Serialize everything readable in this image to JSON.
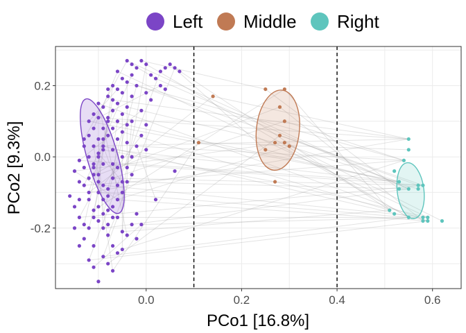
{
  "chart_data": {
    "type": "scatter",
    "title": "",
    "xlabel": "PCo1 [16.8%]",
    "ylabel": "PCo2 [9.3%]",
    "xlim": [
      -0.19,
      0.66
    ],
    "ylim": [
      -0.37,
      0.31
    ],
    "x_ticks": [
      0.0,
      0.2,
      0.4,
      0.6
    ],
    "x_tick_labels": [
      "0.0",
      "0.2",
      "0.4",
      "0.6"
    ],
    "y_ticks": [
      -0.2,
      0.0,
      0.2
    ],
    "y_tick_labels": [
      "-0.2",
      "0.0",
      "0.2"
    ],
    "grid": true,
    "legend_position": "top",
    "vlines": [
      0.1,
      0.4
    ],
    "series": [
      {
        "name": "Left",
        "color": "#7b45c6",
        "ellipse": {
          "cx": -0.092,
          "cy": 0.002,
          "rx": 0.032,
          "ry": 0.167,
          "angle_deg": -16
        },
        "points": [
          [
            -0.12,
            -0.1
          ],
          [
            -0.11,
            -0.05
          ],
          [
            -0.1,
            0.0
          ],
          [
            -0.09,
            0.05
          ],
          [
            -0.08,
            0.1
          ],
          [
            -0.07,
            0.13
          ],
          [
            -0.06,
            0.15
          ],
          [
            -0.05,
            0.18
          ],
          [
            -0.04,
            0.21
          ],
          [
            -0.03,
            0.23
          ],
          [
            -0.02,
            0.25
          ],
          [
            -0.01,
            0.27
          ],
          [
            0.0,
            0.26
          ],
          [
            -0.06,
            0.1
          ],
          [
            -0.07,
            0.08
          ],
          [
            -0.08,
            0.06
          ],
          [
            -0.09,
            0.03
          ],
          [
            -0.1,
            0.01
          ],
          [
            -0.11,
            -0.02
          ],
          [
            -0.12,
            -0.06
          ],
          [
            -0.13,
            -0.08
          ],
          [
            -0.12,
            -0.12
          ],
          [
            -0.11,
            -0.15
          ],
          [
            -0.1,
            -0.18
          ],
          [
            -0.09,
            -0.2
          ],
          [
            -0.08,
            -0.22
          ],
          [
            -0.07,
            -0.25
          ],
          [
            -0.06,
            -0.27
          ],
          [
            -0.05,
            -0.21
          ],
          [
            -0.06,
            -0.17
          ],
          [
            -0.07,
            -0.14
          ],
          [
            -0.08,
            -0.11
          ],
          [
            -0.09,
            -0.08
          ],
          [
            -0.1,
            -0.05
          ],
          [
            -0.11,
            -0.03
          ],
          [
            -0.12,
            0.0
          ],
          [
            -0.11,
            0.03
          ],
          [
            -0.1,
            0.05
          ],
          [
            -0.09,
            0.08
          ],
          [
            -0.08,
            0.11
          ],
          [
            -0.07,
            0.02
          ],
          [
            -0.06,
            0.05
          ],
          [
            -0.05,
            0.0
          ],
          [
            -0.06,
            -0.03
          ],
          [
            -0.07,
            -0.06
          ],
          [
            -0.08,
            -0.09
          ],
          [
            -0.09,
            -0.12
          ],
          [
            -0.1,
            -0.14
          ],
          [
            -0.11,
            -0.17
          ],
          [
            -0.12,
            -0.2
          ],
          [
            -0.13,
            -0.23
          ],
          [
            -0.14,
            -0.25
          ],
          [
            -0.12,
            -0.29
          ],
          [
            -0.11,
            -0.31
          ],
          [
            -0.1,
            -0.35
          ],
          [
            -0.08,
            -0.3
          ],
          [
            -0.05,
            -0.26
          ],
          [
            -0.04,
            -0.22
          ],
          [
            -0.03,
            -0.19
          ],
          [
            -0.02,
            -0.16
          ],
          [
            -0.05,
            -0.07
          ],
          [
            -0.04,
            -0.03
          ],
          [
            -0.03,
            0.0
          ],
          [
            -0.04,
            0.04
          ],
          [
            -0.05,
            0.07
          ],
          [
            -0.03,
            0.1
          ],
          [
            -0.04,
            0.14
          ],
          [
            -0.05,
            0.22
          ],
          [
            -0.06,
            0.24
          ],
          [
            -0.07,
            0.2
          ],
          [
            -0.08,
            0.17
          ],
          [
            -0.09,
            0.14
          ],
          [
            -0.1,
            0.11
          ],
          [
            -0.11,
            0.08
          ],
          [
            -0.12,
            0.06
          ],
          [
            -0.13,
            0.03
          ],
          [
            -0.14,
            -0.01
          ],
          [
            -0.15,
            -0.04
          ],
          [
            -0.16,
            -0.11
          ],
          [
            -0.15,
            -0.14
          ],
          [
            -0.14,
            -0.17
          ],
          [
            -0.13,
            -0.19
          ],
          [
            -0.14,
            -0.07
          ],
          [
            -0.13,
            -0.03
          ],
          [
            -0.1,
            -0.1
          ],
          [
            -0.09,
            -0.16
          ],
          [
            -0.08,
            -0.19
          ],
          [
            -0.07,
            -0.17
          ],
          [
            -0.06,
            -0.12
          ],
          [
            -0.05,
            -0.1
          ],
          [
            -0.04,
            -0.07
          ],
          [
            -0.03,
            -0.05
          ],
          [
            -0.02,
            0.03
          ],
          [
            -0.01,
            0.06
          ],
          [
            0.0,
            0.09
          ],
          [
            0.01,
            0.16
          ],
          [
            0.02,
            0.22
          ],
          [
            0.03,
            0.24
          ],
          [
            0.04,
            0.25
          ],
          [
            0.05,
            0.26
          ],
          [
            0.06,
            0.25
          ],
          [
            0.03,
            0.2
          ],
          [
            0.04,
            0.19
          ],
          [
            0.06,
            -0.04
          ],
          [
            -0.01,
            -0.19
          ],
          [
            0.02,
            -0.12
          ],
          [
            -0.02,
            -0.23
          ],
          [
            -0.08,
            0.19
          ],
          [
            -0.07,
            0.16
          ],
          [
            -0.06,
            0.19
          ],
          [
            -0.09,
            0.02
          ],
          [
            -0.11,
            0.12
          ],
          [
            -0.12,
            0.1
          ],
          [
            -0.13,
            0.05
          ],
          [
            -0.1,
            -0.07
          ],
          [
            -0.09,
            -0.02
          ],
          [
            -0.07,
            -0.02
          ],
          [
            -0.06,
            -0.08
          ],
          [
            -0.08,
            -0.15
          ],
          [
            -0.11,
            -0.25
          ],
          [
            -0.09,
            -0.28
          ],
          [
            -0.07,
            -0.32
          ],
          [
            -0.15,
            -0.2
          ],
          [
            -0.14,
            -0.12
          ],
          [
            -0.1,
            0.15
          ],
          [
            -0.05,
            0.12
          ],
          [
            -0.04,
            0.09
          ],
          [
            -0.03,
            0.17
          ],
          [
            -0.02,
            0.2
          ],
          [
            -0.01,
            0.13
          ],
          [
            0.0,
            0.18
          ],
          [
            0.01,
            0.23
          ],
          [
            -0.04,
            0.27
          ],
          [
            -0.03,
            0.26
          ],
          [
            0.07,
            0.24
          ],
          [
            0.0,
            0.02
          ]
        ]
      },
      {
        "name": "Middle",
        "color": "#c07a54",
        "ellipse": {
          "cx": 0.276,
          "cy": 0.075,
          "rx": 0.045,
          "ry": 0.113,
          "angle_deg": 6
        },
        "points": [
          [
            0.14,
            0.17
          ],
          [
            0.25,
            0.19
          ],
          [
            0.29,
            0.19
          ],
          [
            0.28,
            0.14
          ],
          [
            0.29,
            0.1
          ],
          [
            0.28,
            0.06
          ],
          [
            0.27,
            0.04
          ],
          [
            0.29,
            0.04
          ],
          [
            0.3,
            0.03
          ],
          [
            0.25,
            0.02
          ],
          [
            0.27,
            -0.07
          ],
          [
            0.11,
            0.04
          ]
        ]
      },
      {
        "name": "Right",
        "color": "#5ec5bd",
        "ellipse": {
          "cx": 0.554,
          "cy": -0.095,
          "rx": 0.028,
          "ry": 0.079,
          "angle_deg": -7
        },
        "points": [
          [
            0.55,
            0.05
          ],
          [
            0.55,
            0.02
          ],
          [
            0.54,
            -0.01
          ],
          [
            0.52,
            -0.04
          ],
          [
            0.53,
            -0.07
          ],
          [
            0.53,
            -0.09
          ],
          [
            0.55,
            -0.09
          ],
          [
            0.57,
            -0.08
          ],
          [
            0.58,
            -0.08
          ],
          [
            0.57,
            -0.09
          ],
          [
            0.51,
            -0.15
          ],
          [
            0.52,
            -0.16
          ],
          [
            0.55,
            -0.17
          ],
          [
            0.58,
            -0.17
          ],
          [
            0.59,
            -0.17
          ],
          [
            0.58,
            -0.18
          ],
          [
            0.59,
            -0.18
          ],
          [
            0.62,
            -0.18
          ]
        ]
      }
    ]
  }
}
